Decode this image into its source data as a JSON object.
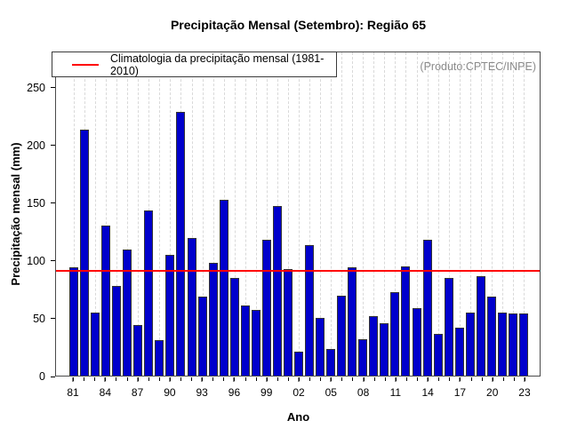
{
  "watermark": "(Produto:CPTEC/INPE)",
  "chart_data": {
    "type": "bar",
    "title": "Precipitação Mensal (Setembro): Região 65",
    "xlabel": "Ano",
    "ylabel": "Precipitação mensal (mm)",
    "categories": [
      "1981",
      "1982",
      "1983",
      "1984",
      "1985",
      "1986",
      "1987",
      "1988",
      "1989",
      "1990",
      "1991",
      "1992",
      "1993",
      "1994",
      "1995",
      "1996",
      "1997",
      "1998",
      "1999",
      "2000",
      "2001",
      "2002",
      "2003",
      "2004",
      "2005",
      "2006",
      "2007",
      "2008",
      "2009",
      "2010",
      "2011",
      "2012",
      "2013",
      "2014",
      "2015",
      "2016",
      "2017",
      "2018",
      "2019",
      "2020",
      "2021",
      "2022",
      "2023"
    ],
    "values": [
      94,
      214,
      55,
      131,
      78,
      110,
      44,
      144,
      31,
      105,
      230,
      120,
      69,
      98,
      153,
      85,
      61,
      57,
      118,
      148,
      93,
      21,
      114,
      50,
      23,
      70,
      94,
      32,
      52,
      46,
      73,
      95,
      59,
      118,
      36,
      85,
      42,
      55,
      87,
      69,
      55,
      54,
      54
    ],
    "x_tick_step": 3,
    "x_tick_labels": [
      "81",
      "84",
      "87",
      "90",
      "93",
      "96",
      "99",
      "02",
      "05",
      "08",
      "11",
      "14",
      "17",
      "20",
      "23"
    ],
    "yticks": [
      0,
      50,
      100,
      150,
      200,
      250
    ],
    "ylim": [
      0,
      281.5
    ],
    "grid": "vertical-dashed",
    "legend_position": "top-left-inside",
    "climatology_line": {
      "label": "Climatologia da precipitação mensal (1981-2010)",
      "value": 91.3,
      "color": "#ff0000"
    },
    "colors": {
      "bar_fill": "#0000cc",
      "bar_border": "#333333",
      "grid_line": "#d9d9d9",
      "watermark_text": "#8a8a8a",
      "axis_text": "#000000"
    }
  }
}
